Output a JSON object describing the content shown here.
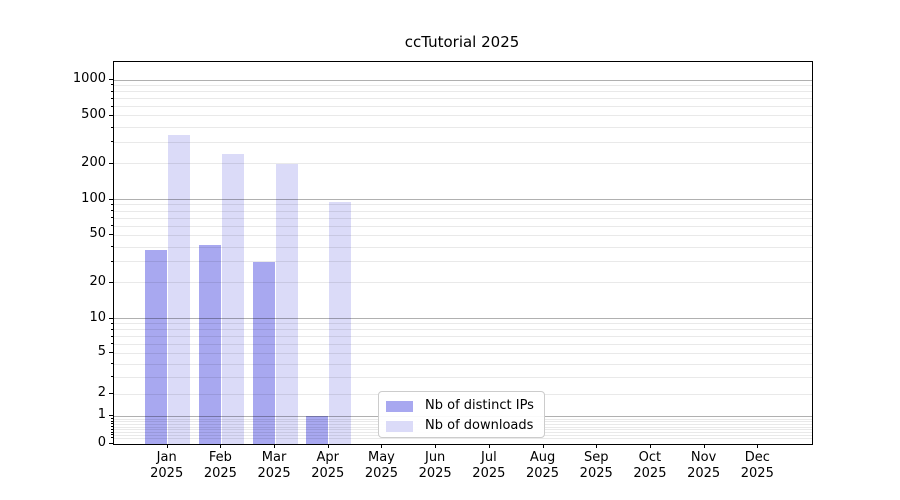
{
  "chart_data": {
    "type": "bar",
    "title": "ccTutorial 2025",
    "x_tick_months": [
      "Jan",
      "Feb",
      "Mar",
      "Apr",
      "May",
      "Jun",
      "Jul",
      "Aug",
      "Sep",
      "Oct",
      "Nov",
      "Dec"
    ],
    "x_tick_year": "2025",
    "categories": [
      "Jan 2025",
      "Feb 2025",
      "Mar 2025",
      "Apr 2025",
      "May 2025",
      "Jun 2025",
      "Jul 2025",
      "Aug 2025",
      "Sep 2025",
      "Oct 2025",
      "Nov 2025",
      "Dec 2025"
    ],
    "series": [
      {
        "name": "Nb of distinct IPs",
        "color": "#a8a8f0",
        "values": [
          38,
          42,
          30,
          1,
          0,
          0,
          0,
          0,
          0,
          0,
          0,
          0
        ]
      },
      {
        "name": "Nb of downloads",
        "color": "#dbdbf8",
        "values": [
          350,
          240,
          200,
          95,
          0,
          0,
          0,
          0,
          0,
          0,
          0,
          0
        ]
      }
    ],
    "y_ticks": [
      0,
      1,
      2,
      5,
      10,
      20,
      50,
      100,
      200,
      500,
      1000
    ],
    "y_scale": "asinh",
    "ylim": [
      0,
      1000
    ],
    "grid": "horizontal major+minor",
    "legend_position": "lower center"
  },
  "colors": {
    "bar_distinct_ips": "#a8a8f0",
    "bar_downloads": "#dbdbf8",
    "major_grid": "#b0b0b0",
    "minor_grid": "#e8e8e8",
    "spine": "#000000",
    "legend_border": "#cccccc",
    "text": "#000000"
  }
}
